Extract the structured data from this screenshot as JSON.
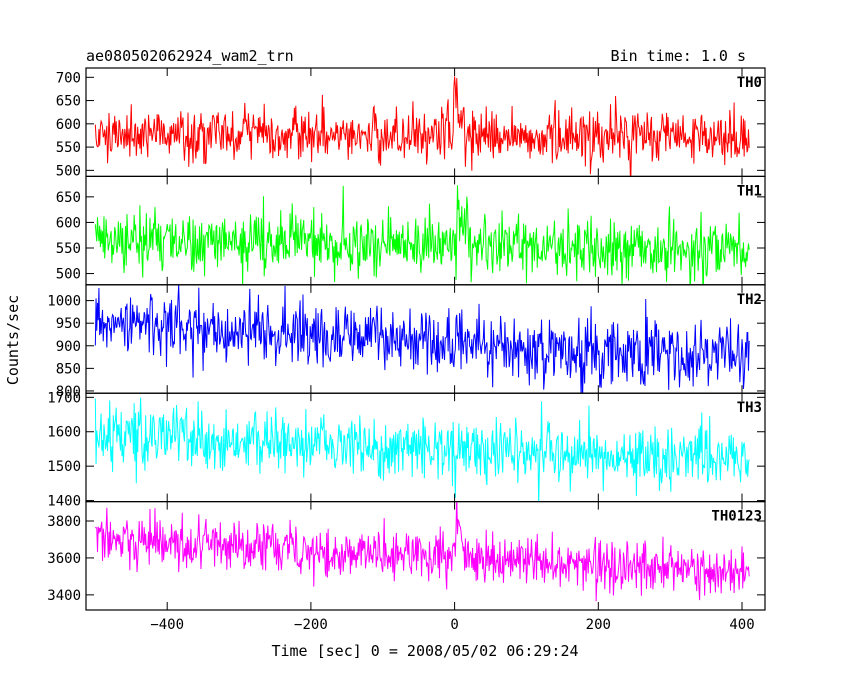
{
  "header": {
    "title": "ae080502062924_wam2_trn",
    "bin_time": "Bin time: 1.0 s"
  },
  "chart_data": {
    "type": "line",
    "xlabel": "Time [sec] 0 = 2008/05/02 06:29:24",
    "ylabel": "Counts/sec",
    "xlim": [
      -513,
      432
    ],
    "x_ticks": [
      -400,
      -200,
      0,
      200,
      400
    ],
    "x_sample_step": 1.0,
    "x_data_range": [
      -500,
      410
    ],
    "panels": [
      {
        "name": "TH0",
        "color": "#ff0000",
        "ylim": [
          487,
          720
        ],
        "y_ticks": [
          500,
          550,
          600,
          650,
          700
        ],
        "baseline": [
          [
            -500,
            580
          ],
          [
            -300,
            577
          ],
          [
            0,
            574
          ],
          [
            200,
            572
          ],
          [
            410,
            570
          ]
        ],
        "noise_sd": 27,
        "burst": {
          "t0": 0,
          "peak": 135,
          "rise": 3,
          "decay": 6
        }
      },
      {
        "name": "TH1",
        "color": "#00ff00",
        "ylim": [
          478,
          690
        ],
        "y_ticks": [
          500,
          550,
          600,
          650
        ],
        "baseline": [
          [
            -500,
            565
          ],
          [
            -300,
            565
          ],
          [
            0,
            555
          ],
          [
            200,
            546
          ],
          [
            410,
            543
          ]
        ],
        "noise_sd": 30,
        "burst": {
          "t0": 5,
          "peak": 70,
          "rise": 3,
          "decay": 8
        }
      },
      {
        "name": "TH2",
        "color": "#0000ff",
        "ylim": [
          795,
          1035
        ],
        "y_ticks": [
          800,
          850,
          900,
          950,
          1000
        ],
        "baseline": [
          [
            -500,
            960
          ],
          [
            -300,
            930
          ],
          [
            0,
            905
          ],
          [
            200,
            885
          ],
          [
            410,
            878
          ]
        ],
        "noise_sd": 35,
        "burst": {
          "t0": 5,
          "peak": 30,
          "rise": 3,
          "decay": 8
        }
      },
      {
        "name": "TH3",
        "color": "#00ffff",
        "ylim": [
          1397,
          1712
        ],
        "y_ticks": [
          1400,
          1500,
          1600,
          1700
        ],
        "baseline": [
          [
            -500,
            1590
          ],
          [
            -300,
            1570
          ],
          [
            0,
            1545
          ],
          [
            200,
            1530
          ],
          [
            410,
            1520
          ]
        ],
        "noise_sd": 45,
        "burst": {
          "t0": 5,
          "peak": 20,
          "rise": 3,
          "decay": 8
        }
      },
      {
        "name": "TH0123",
        "color": "#ff00ff",
        "ylim": [
          3318,
          3905
        ],
        "y_ticks": [
          3400,
          3600,
          3800
        ],
        "baseline": [
          [
            -500,
            3700
          ],
          [
            -300,
            3660
          ],
          [
            0,
            3600
          ],
          [
            200,
            3555
          ],
          [
            410,
            3520
          ]
        ],
        "noise_sd": 70,
        "burst": {
          "t0": 3,
          "peak": 250,
          "rise": 3,
          "decay": 6
        }
      }
    ]
  }
}
